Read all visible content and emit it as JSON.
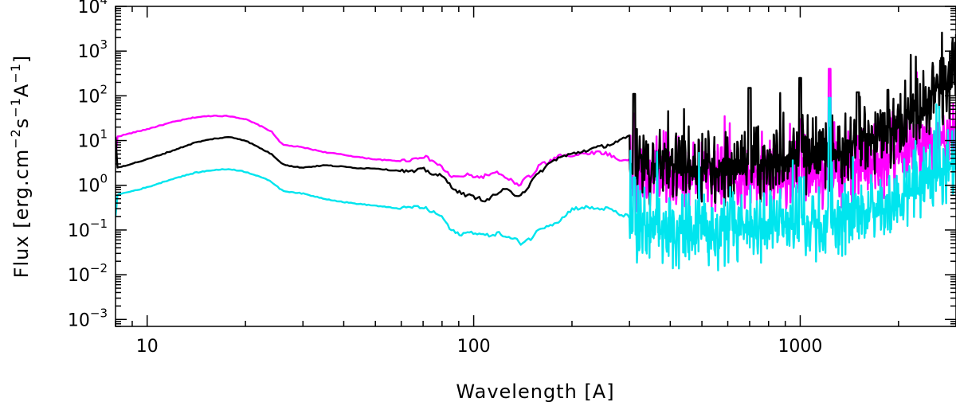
{
  "chart_data": {
    "type": "line",
    "title": "",
    "xlabel": "Wavelength [A]",
    "ylabel": "Flux [erg.cm^-2 s^-1 A^-1]",
    "ylabel_parts": {
      "open": "Flux [erg.cm",
      "exp1": "−2",
      "mid1": "s",
      "exp2": "−1",
      "mid2": "A",
      "exp3": "−1",
      "close": "]"
    },
    "x_scale": "log",
    "y_scale": "log",
    "xlim": [
      8,
      3000
    ],
    "ylim": [
      0.0007,
      10000
    ],
    "x_ticks": [
      10,
      100,
      1000
    ],
    "x_tick_labels": [
      "10",
      "100",
      "1000"
    ],
    "y_ticks": [
      0.001,
      0.01,
      0.1,
      1,
      10,
      100,
      1000,
      10000
    ],
    "y_tick_labels": [
      {
        "base": "10",
        "exp": "−3"
      },
      {
        "base": "10",
        "exp": "−2"
      },
      {
        "base": "10",
        "exp": "−1"
      },
      {
        "base": "10",
        "exp": "0"
      },
      {
        "base": "10",
        "exp": "1"
      },
      {
        "base": "10",
        "exp": "2"
      },
      {
        "base": "10",
        "exp": "3"
      },
      {
        "base": "10",
        "exp": "4"
      }
    ],
    "grid": false,
    "legend": "none",
    "series": [
      {
        "color": "#ff00ff",
        "x": [
          8,
          10,
          12,
          14,
          16,
          18,
          20,
          22,
          24,
          26,
          28,
          30,
          35,
          40,
          45,
          50,
          55,
          60,
          65,
          70,
          75,
          80,
          85,
          90,
          95,
          100,
          105,
          110,
          115,
          120,
          125,
          130,
          135,
          140,
          145,
          150,
          160,
          170,
          180,
          190,
          200,
          220,
          240,
          260,
          280,
          300
        ],
        "y": [
          12,
          18,
          26,
          33,
          36,
          35,
          30,
          22,
          16,
          8,
          7.5,
          7,
          5.5,
          4.8,
          4.2,
          3.8,
          3.6,
          3.5,
          3.8,
          4.5,
          3.5,
          2.5,
          1.6,
          1.5,
          1.7,
          1.6,
          1.5,
          1.7,
          1.8,
          1.9,
          1.4,
          1.3,
          1.0,
          1.1,
          1.6,
          1.5,
          3.0,
          3.2,
          4.5,
          5.0,
          4.5,
          5.2,
          5.5,
          5.0,
          3.5,
          4.0
        ],
        "noisy_region": {
          "start": 300,
          "end": 3000,
          "median": 1.5,
          "end_value": 15,
          "spikes": [
            [
              1230,
              400
            ],
            [
              310,
              40
            ],
            [
              1000,
              30
            ]
          ]
        }
      },
      {
        "color": "#000000",
        "x": [
          8,
          10,
          12,
          14,
          16,
          18,
          20,
          22,
          24,
          26,
          28,
          30,
          35,
          40,
          45,
          50,
          55,
          60,
          65,
          70,
          75,
          80,
          85,
          90,
          95,
          100,
          105,
          110,
          115,
          120,
          125,
          130,
          135,
          140,
          145,
          150,
          160,
          170,
          180,
          190,
          200,
          220,
          240,
          260,
          280,
          300
        ],
        "y": [
          2.4,
          3.8,
          6,
          9,
          11,
          12,
          10,
          7,
          5,
          3,
          2.6,
          2.5,
          2.8,
          2.6,
          2.4,
          2.4,
          2.2,
          2.1,
          2.0,
          2.3,
          1.8,
          1.6,
          1.0,
          0.7,
          0.6,
          0.55,
          0.5,
          0.45,
          0.6,
          0.7,
          0.8,
          0.7,
          0.6,
          0.65,
          0.8,
          1.2,
          2.0,
          3.0,
          4.0,
          4.5,
          5.0,
          6.0,
          7.0,
          8.0,
          10.0,
          12.0
        ],
        "noisy_region": {
          "start": 300,
          "end": 3000,
          "median": 2.5,
          "end_value": 300,
          "spikes": [
            [
              310,
              110
            ],
            [
              1000,
              250
            ],
            [
              700,
              150
            ],
            [
              1500,
              120
            ]
          ]
        }
      },
      {
        "color": "#00e5ee",
        "x": [
          8,
          10,
          12,
          14,
          16,
          18,
          20,
          22,
          24,
          26,
          28,
          30,
          35,
          40,
          45,
          50,
          55,
          60,
          65,
          70,
          75,
          80,
          85,
          90,
          95,
          100,
          105,
          110,
          115,
          120,
          125,
          130,
          135,
          140,
          145,
          150,
          160,
          170,
          180,
          190,
          200,
          220,
          240,
          260,
          280,
          300
        ],
        "y": [
          0.6,
          0.9,
          1.4,
          1.9,
          2.2,
          2.3,
          2.0,
          1.6,
          1.2,
          0.75,
          0.7,
          0.65,
          0.5,
          0.42,
          0.38,
          0.35,
          0.32,
          0.3,
          0.33,
          0.32,
          0.25,
          0.2,
          0.1,
          0.08,
          0.085,
          0.09,
          0.08,
          0.075,
          0.08,
          0.085,
          0.07,
          0.065,
          0.06,
          0.05,
          0.06,
          0.065,
          0.11,
          0.13,
          0.15,
          0.2,
          0.3,
          0.32,
          0.3,
          0.3,
          0.22,
          0.2
        ],
        "noisy_region": {
          "start": 300,
          "end": 3000,
          "median": 0.1,
          "end_value": 4,
          "spikes": [
            [
              1230,
              90
            ],
            [
              310,
              1.5
            ],
            [
              1000,
              1.5
            ]
          ]
        }
      }
    ]
  }
}
